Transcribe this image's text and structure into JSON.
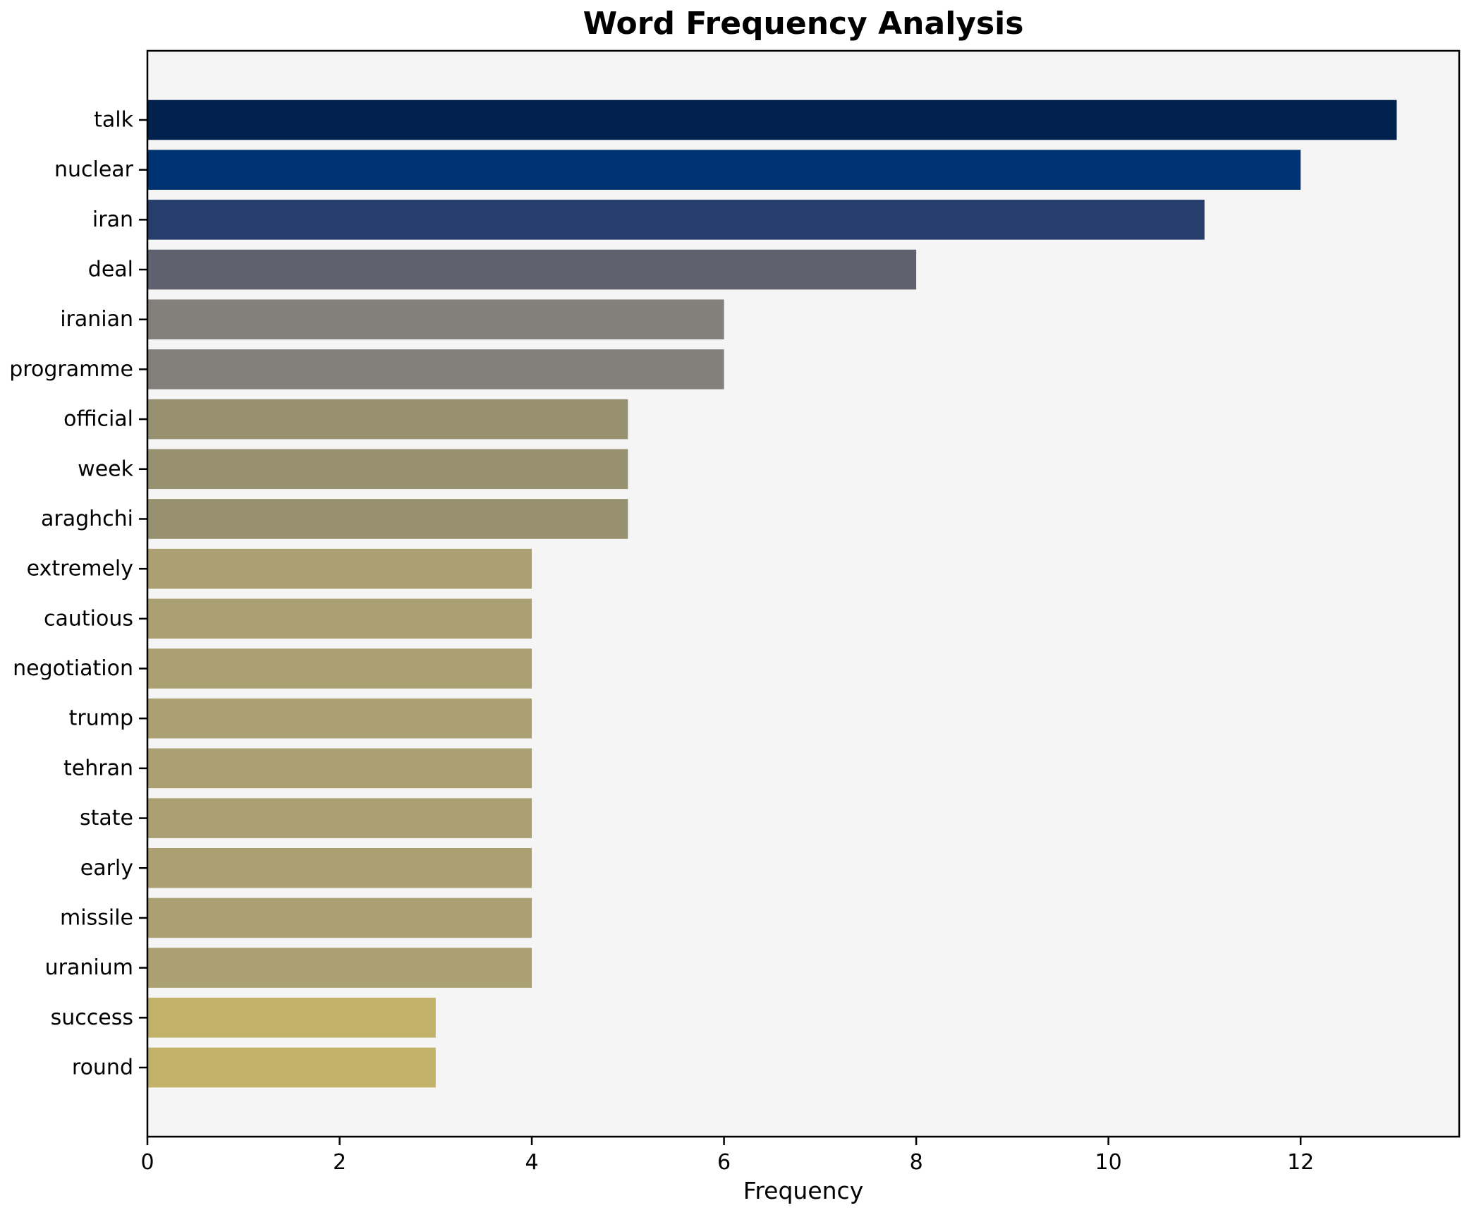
{
  "title": "Word Frequency Analysis",
  "xlabel": "Frequency",
  "chart_data": {
    "type": "bar",
    "orientation": "horizontal",
    "title": "Word Frequency Analysis",
    "xlabel": "Frequency",
    "ylabel": "",
    "categories": [
      "talk",
      "nuclear",
      "iran",
      "deal",
      "iranian",
      "programme",
      "official",
      "week",
      "araghchi",
      "extremely",
      "cautious",
      "negotiation",
      "trump",
      "tehran",
      "state",
      "early",
      "missile",
      "uranium",
      "success",
      "round"
    ],
    "values": [
      13,
      12,
      11,
      8,
      6,
      6,
      5,
      5,
      5,
      4,
      4,
      4,
      4,
      4,
      4,
      4,
      4,
      4,
      3,
      3
    ],
    "bar_colors": [
      "#01224e",
      "#003371",
      "#273d6c",
      "#5f616e",
      "#82807a",
      "#82807a",
      "#979170",
      "#979170",
      "#979170",
      "#aaa071",
      "#aaa071",
      "#aaa071",
      "#aaa071",
      "#aaa071",
      "#aaa071",
      "#aaa071",
      "#aaa071",
      "#aaa071",
      "#c2b169",
      "#c2b169"
    ],
    "xticks": [
      0,
      2,
      4,
      6,
      8,
      10,
      12
    ],
    "xlim": [
      0,
      13.65
    ],
    "grid": false,
    "legend": null,
    "plot_background": "#f5f5f6",
    "figure_background": "#ffffff",
    "axis_color": "#000000"
  }
}
